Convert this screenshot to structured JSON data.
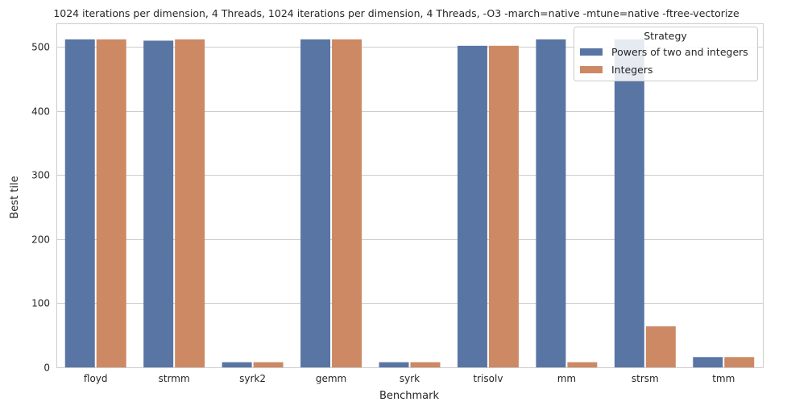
{
  "chart_data": {
    "type": "bar",
    "title": "1024 iterations per dimension, 4 Threads, 1024 iterations per dimension, 4 Threads, -O3 -march=native -mtune=native -ftree-vectorize",
    "xlabel": "Benchmark",
    "ylabel": "Best tile",
    "categories": [
      "floyd",
      "strmm",
      "syrk2",
      "gemm",
      "syrk",
      "trisolv",
      "mm",
      "strsm",
      "tmm"
    ],
    "series": [
      {
        "name": "Powers of two and integers",
        "color": "#5975a4",
        "values": [
          512,
          510,
          8,
          512,
          8,
          502,
          512,
          512,
          16
        ]
      },
      {
        "name": "Integers",
        "color": "#cc8963",
        "values": [
          512,
          512,
          8,
          512,
          8,
          502,
          8,
          64,
          16
        ]
      }
    ],
    "ylim": [
      0,
      537
    ],
    "yticks": [
      0,
      100,
      200,
      300,
      400,
      500
    ],
    "grid": true,
    "legend": {
      "title": "Strategy",
      "placement": "top-right"
    }
  }
}
